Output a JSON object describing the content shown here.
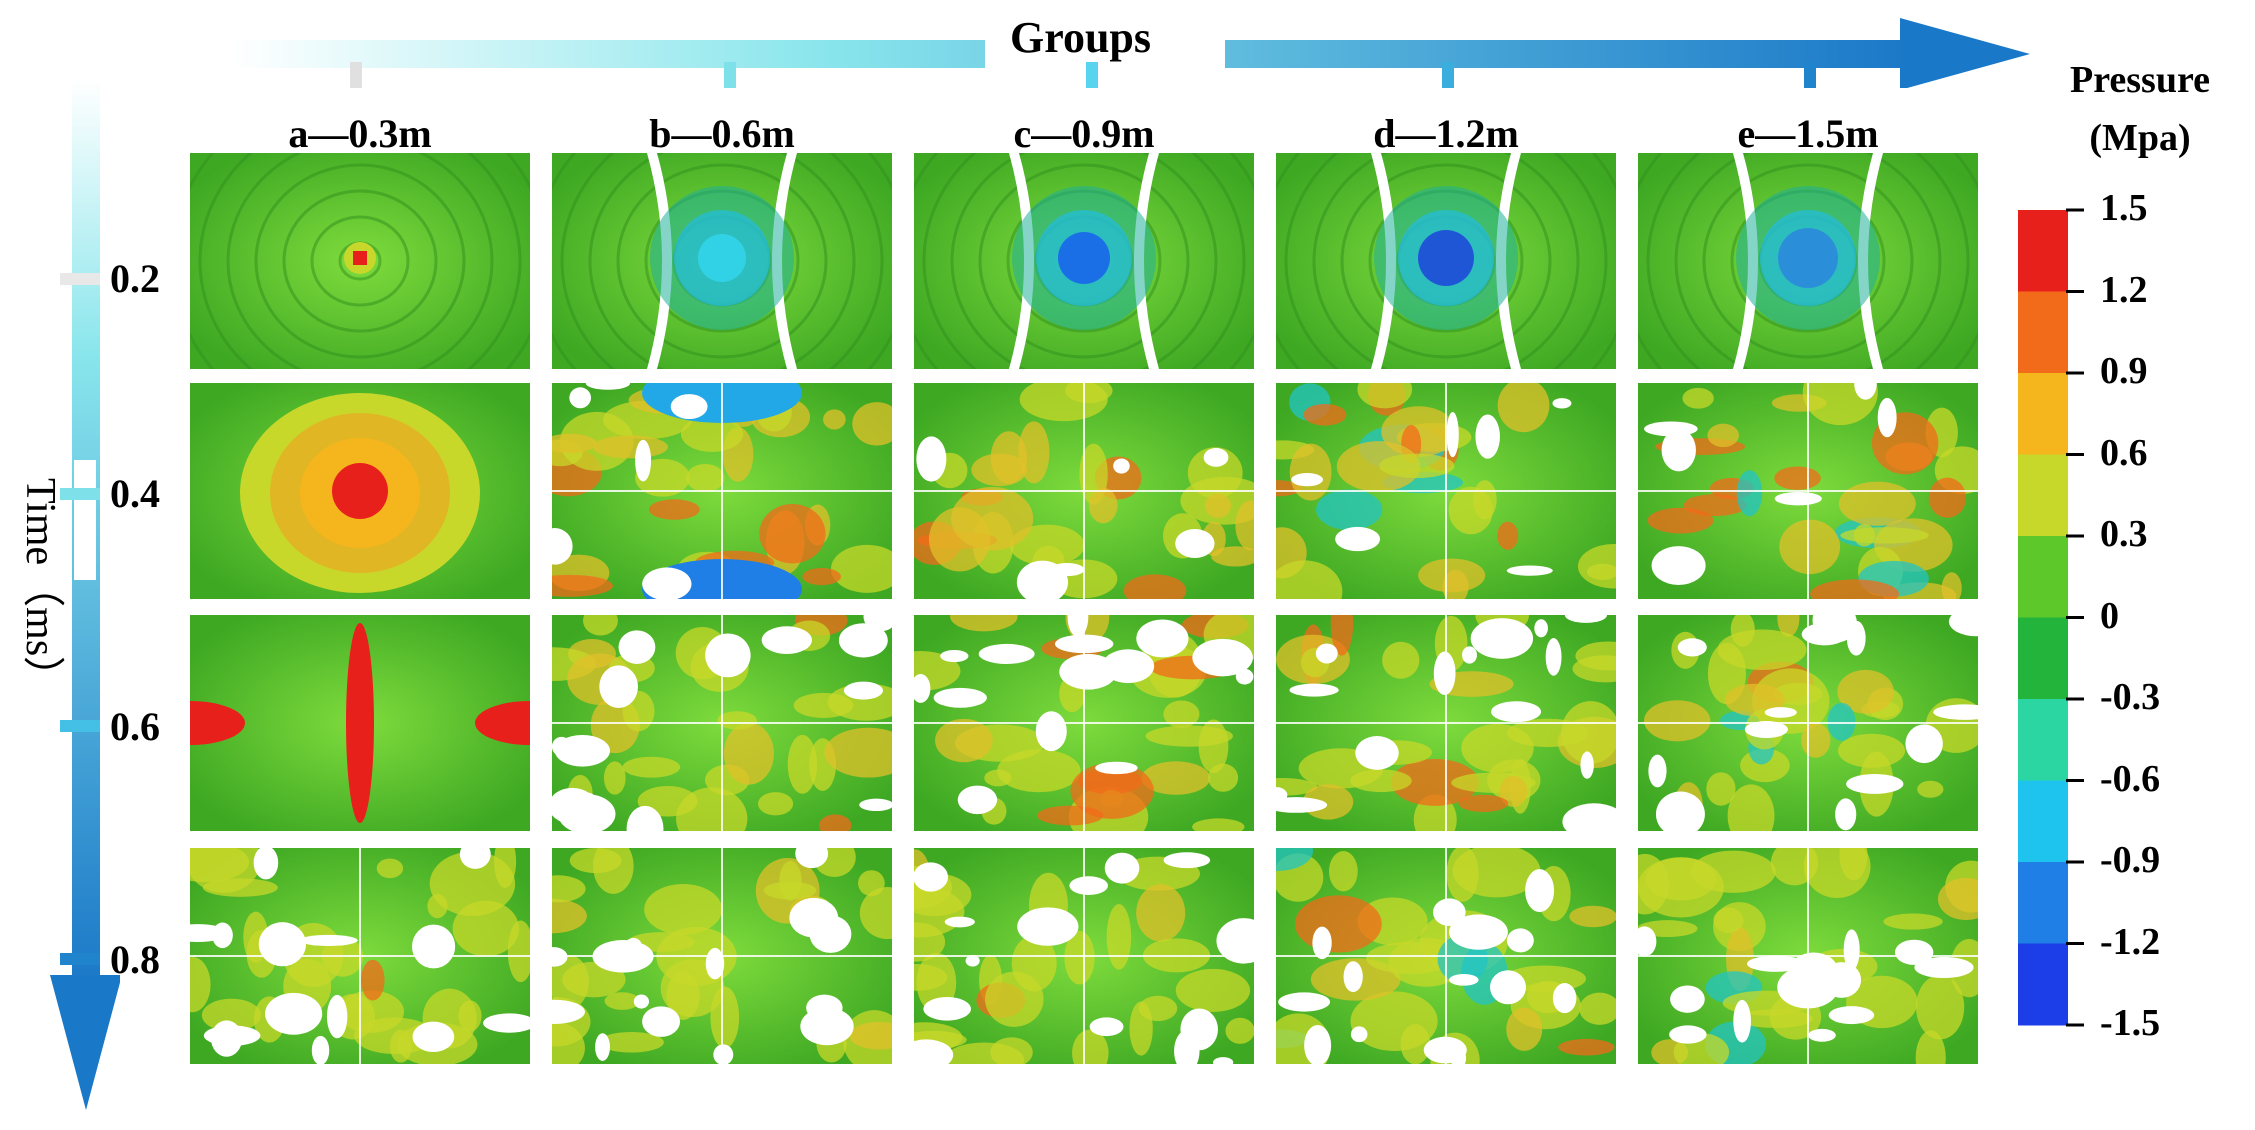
{
  "axes": {
    "groups_label": "Groups",
    "time_label": "Time（ms）",
    "columns": [
      "a—0.3m",
      "b—0.6m",
      "c—0.9m",
      "d—1.2m",
      "e—1.5m"
    ],
    "rows": [
      "0.2",
      "0.4",
      "0.6",
      "0.8"
    ]
  },
  "legend": {
    "title_line1": "Pressure",
    "title_line2": "(Mpa)",
    "ticks": [
      "1.5",
      "1.2",
      "0.9",
      "0.6",
      "0.3",
      "0",
      "-0.3",
      "-0.6",
      "-0.9",
      "-1.2",
      "-1.5"
    ],
    "colors": [
      "#e8201c",
      "#f26b1a",
      "#f5b51d",
      "#c7d82a",
      "#5cc82a",
      "#23b43b",
      "#2bd6a3",
      "#1ec4ee",
      "#1f7fe6",
      "#1b3ee8",
      "#1a1aee"
    ]
  },
  "palette": {
    "field": "#59c52c",
    "blast_high": "#e8201c",
    "blast_low": "#1a5fe6",
    "arrow_start": "#ffffff",
    "arrow_end": "#1a78c8"
  }
}
